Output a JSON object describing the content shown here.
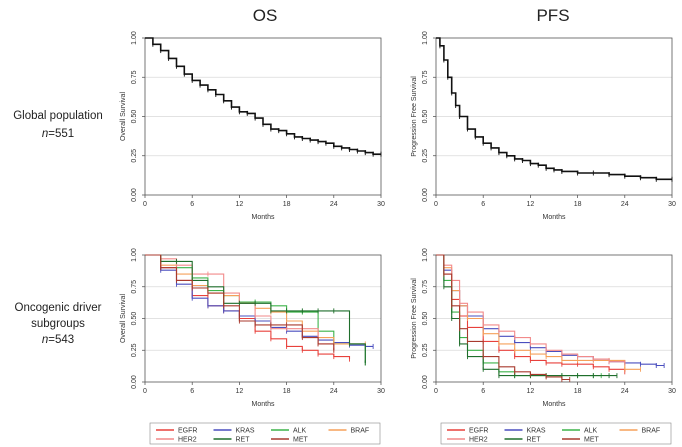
{
  "column_headers": [
    "OS",
    "PFS"
  ],
  "row_labels": [
    {
      "line1": "Global population",
      "n_prefix": "n",
      "n_value": "=551"
    },
    {
      "line1": "Oncogenic driver",
      "line2": "subgroups",
      "n_prefix": "n",
      "n_value": "=543"
    }
  ],
  "colors": {
    "EGFR": "#e8413c",
    "KRAS": "#4a4fbf",
    "ALK": "#3db34a",
    "BRAF": "#f5a05a",
    "HER2": "#f28a8a",
    "RET": "#1f6e2c",
    "MET": "#a83a2e",
    "global": "#111111",
    "grid": "#d9d9d9"
  },
  "chart_data": [
    {
      "id": "os_global",
      "type": "line",
      "ylabel": "Overall Survival",
      "xlabel": "Months",
      "xlim": [
        0,
        30
      ],
      "ylim": [
        0,
        1
      ],
      "xticks": [
        "0",
        "6",
        "12",
        "18",
        "24",
        "30"
      ],
      "yticks": [
        "0.00",
        "0.25",
        "0.50",
        "0.75",
        "1.00"
      ],
      "series": [
        {
          "name": "Global",
          "color": "global",
          "x": [
            0,
            1,
            2,
            3,
            4,
            5,
            6,
            7,
            8,
            9,
            10,
            11,
            12,
            13,
            14,
            15,
            16,
            17,
            18,
            19,
            20,
            21,
            22,
            23,
            24,
            25,
            26,
            27,
            28,
            29,
            30
          ],
          "y": [
            1.0,
            0.96,
            0.92,
            0.87,
            0.82,
            0.77,
            0.73,
            0.7,
            0.67,
            0.64,
            0.6,
            0.56,
            0.53,
            0.52,
            0.49,
            0.45,
            0.42,
            0.41,
            0.39,
            0.37,
            0.36,
            0.35,
            0.34,
            0.33,
            0.31,
            0.3,
            0.29,
            0.28,
            0.27,
            0.26,
            0.26
          ]
        }
      ]
    },
    {
      "id": "pfs_global",
      "type": "line",
      "ylabel": "Progression Free Survival",
      "xlabel": "Months",
      "xlim": [
        0,
        30
      ],
      "ylim": [
        0,
        1
      ],
      "xticks": [
        "0",
        "6",
        "12",
        "18",
        "24",
        "30"
      ],
      "yticks": [
        "0.00",
        "0.25",
        "0.50",
        "0.75",
        "1.00"
      ],
      "series": [
        {
          "name": "Global",
          "color": "global",
          "x": [
            0,
            0.5,
            1,
            1.5,
            2,
            2.5,
            3,
            4,
            5,
            6,
            7,
            8,
            9,
            10,
            11,
            12,
            13,
            14,
            15,
            16,
            18,
            20,
            22,
            24,
            26,
            28,
            30
          ],
          "y": [
            1.0,
            0.95,
            0.86,
            0.75,
            0.65,
            0.57,
            0.5,
            0.42,
            0.37,
            0.33,
            0.3,
            0.27,
            0.25,
            0.23,
            0.22,
            0.2,
            0.19,
            0.17,
            0.16,
            0.15,
            0.14,
            0.14,
            0.13,
            0.12,
            0.11,
            0.1,
            0.1
          ]
        }
      ]
    },
    {
      "id": "os_driver",
      "type": "line",
      "ylabel": "Overall Survival",
      "xlabel": "Months",
      "xlim": [
        0,
        30
      ],
      "ylim": [
        0,
        1
      ],
      "xticks": [
        "0",
        "6",
        "12",
        "18",
        "24",
        "30"
      ],
      "yticks": [
        "0.00",
        "0.25",
        "0.50",
        "0.75",
        "1.00"
      ],
      "series": [
        {
          "name": "EGFR",
          "color": "EGFR",
          "x": [
            0,
            2,
            4,
            6,
            8,
            10,
            12,
            14,
            16,
            18,
            20,
            22,
            24,
            26
          ],
          "y": [
            1.0,
            0.9,
            0.8,
            0.68,
            0.6,
            0.56,
            0.5,
            0.4,
            0.34,
            0.28,
            0.25,
            0.22,
            0.2,
            0.18
          ]
        },
        {
          "name": "KRAS",
          "color": "KRAS",
          "x": [
            0,
            2,
            4,
            6,
            8,
            10,
            12,
            14,
            16,
            18,
            20,
            22,
            24,
            26,
            28,
            29
          ],
          "y": [
            1.0,
            0.88,
            0.77,
            0.66,
            0.6,
            0.56,
            0.52,
            0.48,
            0.43,
            0.4,
            0.36,
            0.33,
            0.31,
            0.29,
            0.28,
            0.28
          ]
        },
        {
          "name": "ALK",
          "color": "ALK",
          "x": [
            0,
            2,
            4,
            6,
            8,
            10,
            12,
            14,
            16,
            18,
            20,
            22,
            24,
            26,
            28
          ],
          "y": [
            1.0,
            0.95,
            0.9,
            0.82,
            0.72,
            0.68,
            0.63,
            0.63,
            0.6,
            0.55,
            0.55,
            0.4,
            0.3,
            0.3,
            0.15
          ]
        },
        {
          "name": "BRAF",
          "color": "BRAF",
          "x": [
            0,
            2,
            4,
            6,
            8,
            10,
            12,
            14,
            16,
            18,
            20,
            22,
            24,
            26,
            28
          ],
          "y": [
            1.0,
            0.92,
            0.85,
            0.76,
            0.7,
            0.68,
            0.62,
            0.58,
            0.55,
            0.48,
            0.4,
            0.35,
            0.3,
            0.3,
            0.3
          ]
        },
        {
          "name": "HER2",
          "color": "HER2",
          "x": [
            0,
            2,
            4,
            6,
            8,
            10,
            12,
            14,
            16,
            18,
            20,
            22,
            24
          ],
          "y": [
            1.0,
            0.97,
            0.92,
            0.85,
            0.85,
            0.7,
            0.62,
            0.52,
            0.42,
            0.42,
            0.42,
            0.3,
            0.25
          ]
        },
        {
          "name": "RET",
          "color": "RET",
          "x": [
            0,
            2,
            4,
            6,
            8,
            10,
            12,
            14,
            16,
            18,
            20,
            22,
            24,
            26,
            28
          ],
          "y": [
            1.0,
            0.95,
            0.95,
            0.8,
            0.75,
            0.62,
            0.62,
            0.62,
            0.56,
            0.56,
            0.56,
            0.56,
            0.56,
            0.3,
            0.15
          ]
        },
        {
          "name": "MET",
          "color": "MET",
          "x": [
            0,
            2,
            4,
            6,
            8,
            10,
            12,
            14,
            16,
            18,
            20,
            22,
            24
          ],
          "y": [
            1.0,
            0.9,
            0.8,
            0.74,
            0.7,
            0.6,
            0.48,
            0.45,
            0.45,
            0.45,
            0.35,
            0.3,
            0.25
          ]
        }
      ],
      "legend": [
        "EGFR",
        "KRAS",
        "ALK",
        "BRAF",
        "HER2",
        "RET",
        "MET"
      ]
    },
    {
      "id": "pfs_driver",
      "type": "line",
      "ylabel": "Progression Free Survival",
      "xlabel": "Months",
      "xlim": [
        0,
        30
      ],
      "ylim": [
        0,
        1
      ],
      "xticks": [
        "0",
        "6",
        "12",
        "18",
        "24",
        "30"
      ],
      "yticks": [
        "0.00",
        "0.25",
        "0.50",
        "0.75",
        "1.00"
      ],
      "series": [
        {
          "name": "EGFR",
          "color": "EGFR",
          "x": [
            0,
            1,
            2,
            3,
            4,
            6,
            8,
            10,
            12,
            14,
            16,
            18,
            20,
            22,
            24
          ],
          "y": [
            1.0,
            0.85,
            0.65,
            0.52,
            0.43,
            0.32,
            0.25,
            0.2,
            0.17,
            0.15,
            0.14,
            0.14,
            0.12,
            0.1,
            0.08
          ]
        },
        {
          "name": "KRAS",
          "color": "KRAS",
          "x": [
            0,
            1,
            2,
            3,
            4,
            6,
            8,
            10,
            12,
            14,
            16,
            18,
            20,
            22,
            24,
            26,
            28,
            29
          ],
          "y": [
            1.0,
            0.88,
            0.72,
            0.6,
            0.52,
            0.42,
            0.36,
            0.31,
            0.27,
            0.24,
            0.21,
            0.2,
            0.18,
            0.16,
            0.15,
            0.14,
            0.13,
            0.13
          ]
        },
        {
          "name": "ALK",
          "color": "ALK",
          "x": [
            0,
            1,
            2,
            3,
            4,
            6,
            8,
            10,
            12,
            14,
            16,
            18,
            20,
            21
          ],
          "y": [
            1.0,
            0.8,
            0.55,
            0.35,
            0.25,
            0.15,
            0.08,
            0.05,
            0.05,
            0.05,
            0.05,
            0.05,
            0.05,
            0.05
          ]
        },
        {
          "name": "BRAF",
          "color": "BRAF",
          "x": [
            0,
            1,
            2,
            3,
            4,
            6,
            8,
            10,
            12,
            14,
            16,
            18,
            20,
            22,
            24,
            26
          ],
          "y": [
            1.0,
            0.9,
            0.72,
            0.6,
            0.5,
            0.38,
            0.3,
            0.25,
            0.22,
            0.2,
            0.17,
            0.17,
            0.17,
            0.17,
            0.1,
            0.1
          ]
        },
        {
          "name": "HER2",
          "color": "HER2",
          "x": [
            0,
            1,
            2,
            3,
            4,
            6,
            8,
            10,
            12,
            14,
            16,
            18,
            20,
            22,
            24
          ],
          "y": [
            1.0,
            0.92,
            0.8,
            0.62,
            0.55,
            0.45,
            0.4,
            0.35,
            0.3,
            0.25,
            0.22,
            0.2,
            0.18,
            0.16,
            0.15
          ]
        },
        {
          "name": "RET",
          "color": "RET",
          "x": [
            0,
            1,
            2,
            3,
            4,
            6,
            8,
            10,
            12,
            14,
            16,
            18,
            20,
            22,
            23
          ],
          "y": [
            1.0,
            0.75,
            0.5,
            0.3,
            0.2,
            0.1,
            0.05,
            0.05,
            0.05,
            0.05,
            0.05,
            0.05,
            0.05,
            0.05,
            0.05
          ]
        },
        {
          "name": "MET",
          "color": "MET",
          "x": [
            0,
            1,
            2,
            3,
            4,
            6,
            8,
            10,
            12,
            14,
            16,
            17
          ],
          "y": [
            1.0,
            0.85,
            0.6,
            0.42,
            0.32,
            0.2,
            0.12,
            0.08,
            0.06,
            0.04,
            0.02,
            0.02
          ]
        }
      ],
      "legend": [
        "EGFR",
        "KRAS",
        "ALK",
        "BRAF",
        "HER2",
        "RET",
        "MET"
      ]
    }
  ]
}
